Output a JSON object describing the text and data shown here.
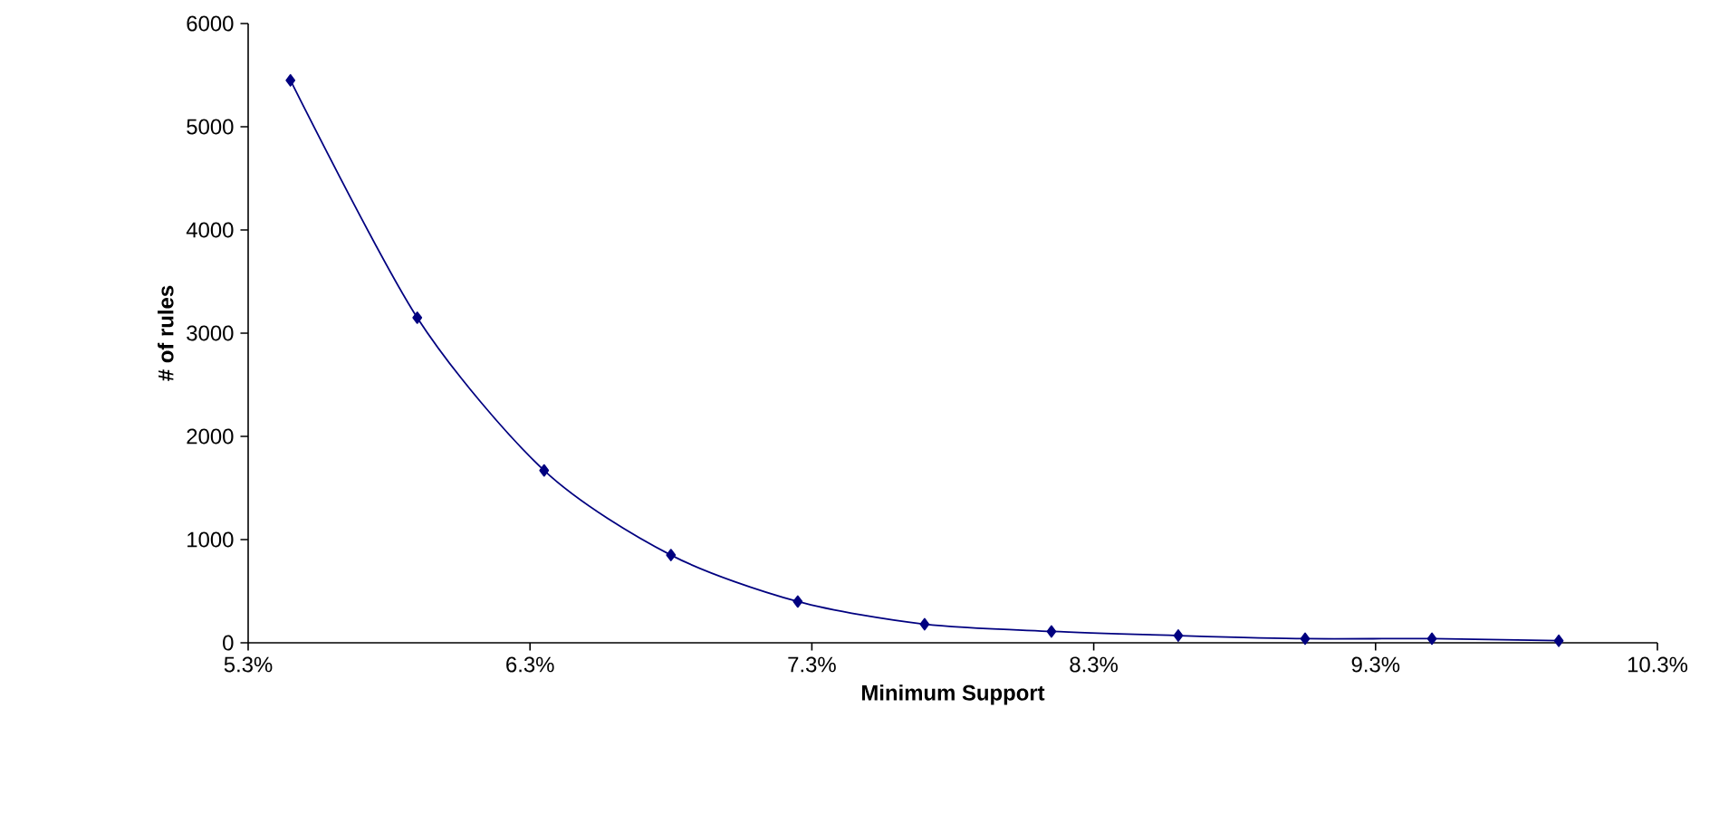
{
  "chart_data": {
    "type": "line",
    "xlabel": "Minimum Support",
    "ylabel": "# of rules",
    "x": [
      5.45,
      5.9,
      6.35,
      6.8,
      7.25,
      7.7,
      8.15,
      8.6,
      9.05,
      9.5,
      9.95
    ],
    "series": [
      {
        "color": "#000080",
        "values": [
          5450,
          3150,
          1670,
          850,
          400,
          180,
          110,
          70,
          40,
          40,
          20
        ]
      }
    ],
    "xlim": [
      5.3,
      10.3
    ],
    "xticks": [
      {
        "value": 5.3,
        "label": "5.3%"
      },
      {
        "value": 6.3,
        "label": "6.3%"
      },
      {
        "value": 7.3,
        "label": "7.3%"
      },
      {
        "value": 8.3,
        "label": "8.3%"
      },
      {
        "value": 9.3,
        "label": "9.3%"
      },
      {
        "value": 10.3,
        "label": "10.3%"
      }
    ],
    "ylim": [
      0,
      6000
    ],
    "yticks": [
      0,
      1000,
      2000,
      3000,
      4000,
      5000,
      6000
    ],
    "marker": "diamond",
    "line_style": "solid"
  }
}
